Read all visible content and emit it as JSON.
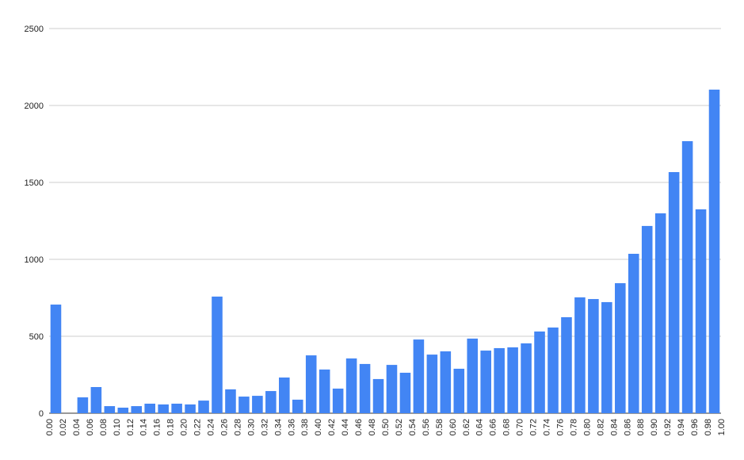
{
  "chart_data": {
    "type": "histogram",
    "color": "#4285f4",
    "grid": true,
    "bins": [
      0,
      0.02,
      0.04,
      0.06,
      0.08,
      0.1,
      0.12,
      0.14,
      0.16,
      0.18,
      0.2,
      0.22,
      0.24,
      0.26,
      0.28,
      0.3,
      0.32,
      0.34,
      0.36,
      0.38,
      0.4,
      0.42,
      0.44,
      0.46,
      0.48,
      0.5,
      0.52,
      0.54,
      0.56,
      0.58,
      0.6,
      0.62,
      0.64,
      0.66,
      0.68,
      0.7,
      0.72,
      0.74,
      0.76,
      0.78,
      0.8,
      0.82,
      0.84,
      0.86,
      0.88,
      0.9,
      0.92,
      0.94,
      0.96,
      0.98,
      1
    ],
    "values": [
      706,
      0,
      103,
      170,
      46,
      36,
      46,
      62,
      57,
      62,
      57,
      82,
      758,
      155,
      108,
      113,
      144,
      232,
      88,
      376,
      284,
      160,
      356,
      320,
      222,
      314,
      263,
      479,
      381,
      402,
      289,
      485,
      407,
      423,
      428,
      454,
      531,
      557,
      624,
      753,
      742,
      722,
      845,
      1036,
      1217,
      1299,
      1567,
      1768,
      1325,
      2103
    ],
    "xlim": [
      0,
      1
    ],
    "xticks": [
      {
        "value": 0,
        "label": "0.00"
      },
      {
        "value": 0.02,
        "label": "0.02"
      },
      {
        "value": 0.04,
        "label": "0.04"
      },
      {
        "value": 0.06,
        "label": "0.06"
      },
      {
        "value": 0.08,
        "label": "0.08"
      },
      {
        "value": 0.1,
        "label": "0.10"
      },
      {
        "value": 0.12,
        "label": "0.12"
      },
      {
        "value": 0.14,
        "label": "0.14"
      },
      {
        "value": 0.16,
        "label": "0.16"
      },
      {
        "value": 0.18,
        "label": "0.18"
      },
      {
        "value": 0.2,
        "label": "0.20"
      },
      {
        "value": 0.22,
        "label": "0.22"
      },
      {
        "value": 0.24,
        "label": "0.24"
      },
      {
        "value": 0.26,
        "label": "0.26"
      },
      {
        "value": 0.28,
        "label": "0.28"
      },
      {
        "value": 0.3,
        "label": "0.30"
      },
      {
        "value": 0.32,
        "label": "0.32"
      },
      {
        "value": 0.34,
        "label": "0.34"
      },
      {
        "value": 0.36,
        "label": "0.36"
      },
      {
        "value": 0.38,
        "label": "0.38"
      },
      {
        "value": 0.4,
        "label": "0.40"
      },
      {
        "value": 0.42,
        "label": "0.42"
      },
      {
        "value": 0.44,
        "label": "0.44"
      },
      {
        "value": 0.46,
        "label": "0.46"
      },
      {
        "value": 0.48,
        "label": "0.48"
      },
      {
        "value": 0.5,
        "label": "0.50"
      },
      {
        "value": 0.52,
        "label": "0.52"
      },
      {
        "value": 0.54,
        "label": "0.54"
      },
      {
        "value": 0.56,
        "label": "0.56"
      },
      {
        "value": 0.58,
        "label": "0.58"
      },
      {
        "value": 0.6,
        "label": "0.60"
      },
      {
        "value": 0.62,
        "label": "0.62"
      },
      {
        "value": 0.64,
        "label": "0.64"
      },
      {
        "value": 0.66,
        "label": "0.66"
      },
      {
        "value": 0.68,
        "label": "0.68"
      },
      {
        "value": 0.7,
        "label": "0.70"
      },
      {
        "value": 0.72,
        "label": "0.72"
      },
      {
        "value": 0.74,
        "label": "0.74"
      },
      {
        "value": 0.76,
        "label": "0.76"
      },
      {
        "value": 0.78,
        "label": "0.78"
      },
      {
        "value": 0.8,
        "label": "0.80"
      },
      {
        "value": 0.82,
        "label": "0.82"
      },
      {
        "value": 0.84,
        "label": "0.84"
      },
      {
        "value": 0.86,
        "label": "0.86"
      },
      {
        "value": 0.88,
        "label": "0.88"
      },
      {
        "value": 0.9,
        "label": "0.90"
      },
      {
        "value": 0.92,
        "label": "0.92"
      },
      {
        "value": 0.94,
        "label": "0.94"
      },
      {
        "value": 0.96,
        "label": "0.96"
      },
      {
        "value": 0.98,
        "label": "0.98"
      },
      {
        "value": 1,
        "label": "1.00"
      }
    ],
    "ylim": [
      0,
      2500
    ],
    "yticks": [
      0,
      500,
      1000,
      1500,
      2000,
      2500
    ]
  }
}
